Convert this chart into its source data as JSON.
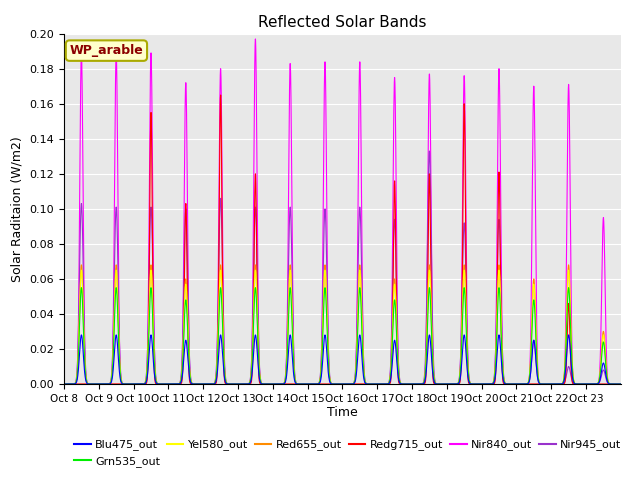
{
  "title": "Reflected Solar Bands",
  "xlabel": "Time",
  "ylabel": "Solar Raditaion (W/m2)",
  "ylim": [
    0.0,
    0.2
  ],
  "yticks": [
    0.0,
    0.02,
    0.04,
    0.06,
    0.08,
    0.1,
    0.12,
    0.14,
    0.16,
    0.18,
    0.2
  ],
  "xtick_labels": [
    "Oct 8",
    "Oct 9",
    "Oct 10",
    "Oct 11",
    "Oct 12",
    "Oct 13",
    "Oct 14",
    "Oct 15",
    "Oct 16",
    "Oct 17",
    "Oct 18",
    "Oct 19",
    "Oct 20",
    "Oct 21",
    "Oct 22",
    "Oct 23"
  ],
  "annotation_text": "WP_arable",
  "annotation_color": "#8B0000",
  "annotation_bg": "#FFFFCC",
  "annotation_border": "#AAAA00",
  "background_color": "#E8E8E8",
  "grid_color": "#FFFFFF",
  "figsize": [
    6.4,
    4.8
  ],
  "dpi": 100,
  "n_days": 16,
  "samples_per_day": 288,
  "sigma": 0.055,
  "series_colors": {
    "Blu475_out": "#0000FF",
    "Grn535_out": "#00EE00",
    "Yel580_out": "#FFFF00",
    "Red655_out": "#FF8C00",
    "Redg715_out": "#FF0000",
    "Nir840_out": "#FF00FF",
    "Nir945_out": "#9932CC"
  },
  "nir840_peaks": [
    0.189,
    0.189,
    0.189,
    0.172,
    0.18,
    0.197,
    0.183,
    0.184,
    0.184,
    0.175,
    0.177,
    0.176,
    0.18,
    0.17,
    0.171,
    0.095
  ],
  "nir945_peaks": [
    0.103,
    0.101,
    0.101,
    0.1,
    0.106,
    0.101,
    0.101,
    0.1,
    0.101,
    0.094,
    0.133,
    0.092,
    0.094,
    0.025,
    0.01,
    0.008
  ],
  "redg715_peaks": [
    0.0,
    0.0,
    0.155,
    0.103,
    0.165,
    0.12,
    0.0,
    0.0,
    0.0,
    0.116,
    0.12,
    0.16,
    0.121,
    0.0,
    0.046,
    0.0
  ],
  "red655_peaks": [
    0.068,
    0.068,
    0.068,
    0.06,
    0.068,
    0.068,
    0.068,
    0.068,
    0.068,
    0.06,
    0.068,
    0.068,
    0.068,
    0.06,
    0.068,
    0.03
  ],
  "yel580_peaks": [
    0.065,
    0.065,
    0.065,
    0.057,
    0.065,
    0.065,
    0.065,
    0.065,
    0.065,
    0.057,
    0.065,
    0.065,
    0.065,
    0.057,
    0.065,
    0.028
  ],
  "grn535_peaks": [
    0.055,
    0.055,
    0.055,
    0.048,
    0.055,
    0.055,
    0.055,
    0.055,
    0.055,
    0.048,
    0.055,
    0.055,
    0.055,
    0.048,
    0.055,
    0.024
  ],
  "blu475_peaks": [
    0.028,
    0.028,
    0.028,
    0.025,
    0.028,
    0.028,
    0.028,
    0.028,
    0.028,
    0.025,
    0.028,
    0.028,
    0.028,
    0.025,
    0.028,
    0.012
  ]
}
